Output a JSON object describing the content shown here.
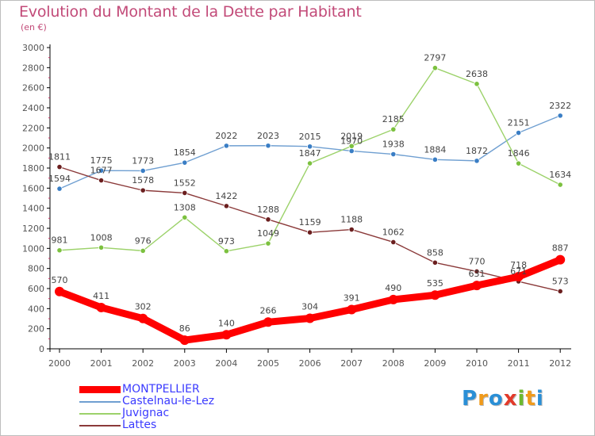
{
  "header": {
    "title": "Evolution du Montant de la Dette par Habitant",
    "subtitle": "(en €)"
  },
  "logo": {
    "text": "Proxiti",
    "letters": [
      "P",
      "r",
      "o",
      "x",
      "i",
      "t",
      "i"
    ],
    "colors": [
      "#2a8fd6",
      "#f09a1a",
      "#2a8fd6",
      "#e23a2a",
      "#6cb92f",
      "#f09a1a",
      "#2a8fd6"
    ]
  },
  "chart_data": {
    "type": "line",
    "title": "Evolution du Montant de la Dette par Habitant",
    "subtitle": "(en €)",
    "xlabel": "",
    "ylabel": "",
    "categories": [
      "2000",
      "2001",
      "2002",
      "2003",
      "2004",
      "2005",
      "2006",
      "2007",
      "2008",
      "2009",
      "2010",
      "2011",
      "2012"
    ],
    "ylim": [
      0,
      3000
    ],
    "yticks": [
      "0",
      "200",
      "400",
      "600",
      "800",
      "1000",
      "1200",
      "1400",
      "1600",
      "1800",
      "2000",
      "2200",
      "2400",
      "2600",
      "2800",
      "3000"
    ],
    "grid": false,
    "legend_position": "bottom-left",
    "series": [
      {
        "name": "MONTPELLIER",
        "color": "#ff0000",
        "thick": true,
        "values": [
          570,
          411,
          302,
          86,
          140,
          266,
          304,
          391,
          490,
          535,
          631,
          718,
          887
        ],
        "labels": [
          "570",
          "411",
          "302",
          "86",
          "140",
          "266",
          "304",
          "391",
          "490",
          "535",
          "631",
          "718",
          "887"
        ]
      },
      {
        "name": "Castelnau-le-Lez",
        "color": "#6f9fd1",
        "marker": "#3a7ec5",
        "thick": false,
        "values": [
          1594,
          1775,
          1773,
          1854,
          2022,
          2023,
          2015,
          1970,
          1938,
          1884,
          1872,
          2151,
          2322
        ],
        "labels": [
          "1594",
          "1775",
          "1773",
          "1854",
          "2022",
          "2023",
          "2015",
          "1970",
          "1938",
          "1884",
          "1872",
          "2151",
          "2322"
        ]
      },
      {
        "name": "Juvignac",
        "color": "#9cd26a",
        "marker": "#7cc13f",
        "thick": false,
        "values": [
          981,
          1008,
          976,
          1308,
          973,
          1049,
          1847,
          2019,
          2185,
          2797,
          2638,
          1846,
          1634
        ],
        "labels": [
          "981",
          "1008",
          "976",
          "1308",
          "973",
          "1049",
          "1847",
          "2019",
          "2185",
          "2797",
          "2638",
          "1846",
          "1634"
        ]
      },
      {
        "name": "Lattes",
        "color": "#8b3a3a",
        "marker": "#6b1f1f",
        "thick": false,
        "values": [
          1811,
          1677,
          1578,
          1552,
          1422,
          1288,
          1159,
          1188,
          1062,
          858,
          770,
          671,
          573
        ],
        "labels": [
          "1811",
          "1677",
          "1578",
          "1552",
          "1422",
          "1288",
          "1159",
          "1188",
          "1062",
          "858",
          "770",
          "671",
          "573"
        ]
      }
    ]
  }
}
